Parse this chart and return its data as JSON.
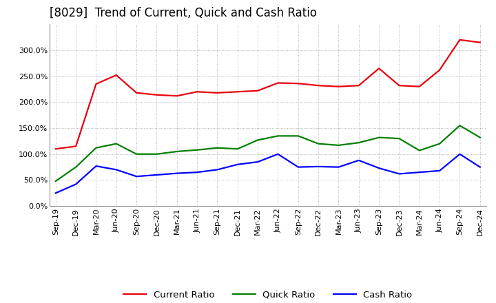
{
  "title": "[8029]  Trend of Current, Quick and Cash Ratio",
  "labels": [
    "Sep-19",
    "Dec-19",
    "Mar-20",
    "Jun-20",
    "Sep-20",
    "Dec-20",
    "Mar-21",
    "Jun-21",
    "Sep-21",
    "Dec-21",
    "Mar-22",
    "Jun-22",
    "Sep-22",
    "Dec-22",
    "Mar-23",
    "Jun-23",
    "Sep-23",
    "Dec-23",
    "Mar-24",
    "Jun-24",
    "Sep-24",
    "Dec-24"
  ],
  "current_ratio": [
    1.1,
    1.15,
    2.35,
    2.52,
    2.18,
    2.14,
    2.12,
    2.2,
    2.18,
    2.2,
    2.22,
    2.37,
    2.36,
    2.32,
    2.3,
    2.32,
    2.65,
    2.32,
    2.3,
    2.62,
    3.2,
    3.15
  ],
  "quick_ratio": [
    0.48,
    0.75,
    1.12,
    1.2,
    1.0,
    1.0,
    1.05,
    1.08,
    1.12,
    1.1,
    1.27,
    1.35,
    1.35,
    1.2,
    1.17,
    1.22,
    1.32,
    1.3,
    1.07,
    1.2,
    1.55,
    1.32
  ],
  "cash_ratio": [
    0.25,
    0.42,
    0.77,
    0.7,
    0.57,
    0.6,
    0.63,
    0.65,
    0.7,
    0.8,
    0.85,
    1.0,
    0.75,
    0.76,
    0.75,
    0.88,
    0.73,
    0.62,
    0.65,
    0.68,
    1.0,
    0.75
  ],
  "current_color": "#e8000d",
  "quick_color": "#008000",
  "cash_color": "#0000ff",
  "background_color": "#ffffff",
  "grid_color": "#999999",
  "ylim": [
    0.0,
    3.5
  ],
  "yticks": [
    0.0,
    0.5,
    1.0,
    1.5,
    2.0,
    2.5,
    3.0
  ],
  "legend_labels": [
    "Current Ratio",
    "Quick Ratio",
    "Cash Ratio"
  ],
  "title_fontsize": 12,
  "tick_fontsize": 8,
  "legend_fontsize": 9.5
}
